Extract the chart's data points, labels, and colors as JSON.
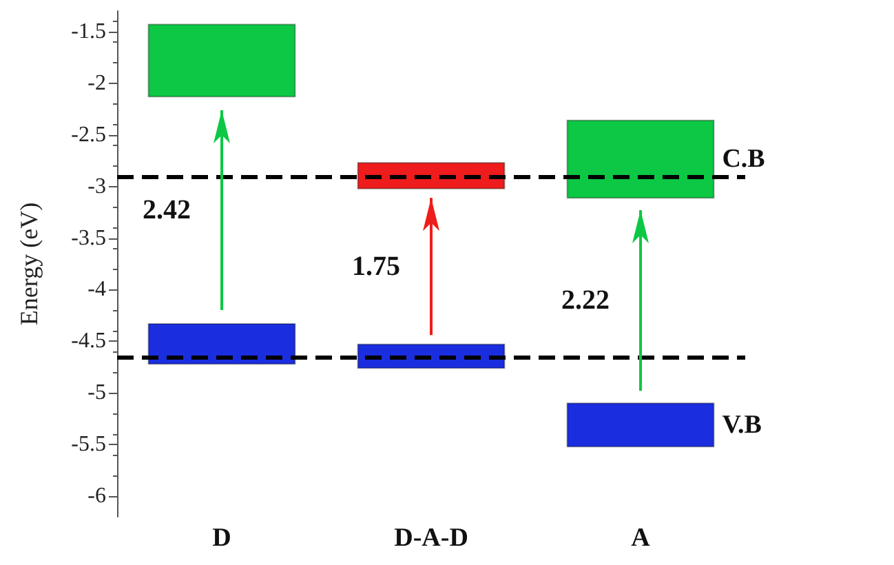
{
  "chart_data": {
    "type": "bar",
    "ylabel": "Energy (eV)",
    "categories": [
      "D",
      "D-A-D",
      "A"
    ],
    "series": [
      {
        "name": "C.B",
        "colors": [
          "#0cc844",
          "#ee1c1c",
          "#0cc844"
        ],
        "base": [
          -2.13,
          -3.02,
          -3.11
        ],
        "values": [
          0.7,
          0.25,
          0.75
        ]
      },
      {
        "name": "V.B",
        "colors": [
          "#1a2ee0",
          "#1a2ee0",
          "#1a2ee0"
        ],
        "base": [
          -4.72,
          -4.76,
          -5.52
        ],
        "values": [
          0.39,
          0.23,
          0.42
        ]
      }
    ],
    "annotations": [
      "2.42",
      "1.75",
      "2.22"
    ],
    "ref_lines": [
      {
        "axis": "y",
        "value": -2.91,
        "line_style": "dashed",
        "color": "#000000"
      },
      {
        "axis": "y",
        "value": -4.65,
        "line_style": "dashed",
        "color": "#000000"
      }
    ],
    "ylim": [
      -6.2,
      -1.3
    ],
    "yticks": [
      -6,
      -5.5,
      -5,
      -4.5,
      -4,
      -3.5,
      -3,
      -2.5,
      -2,
      -1.5
    ],
    "legend": false,
    "grid": false
  }
}
